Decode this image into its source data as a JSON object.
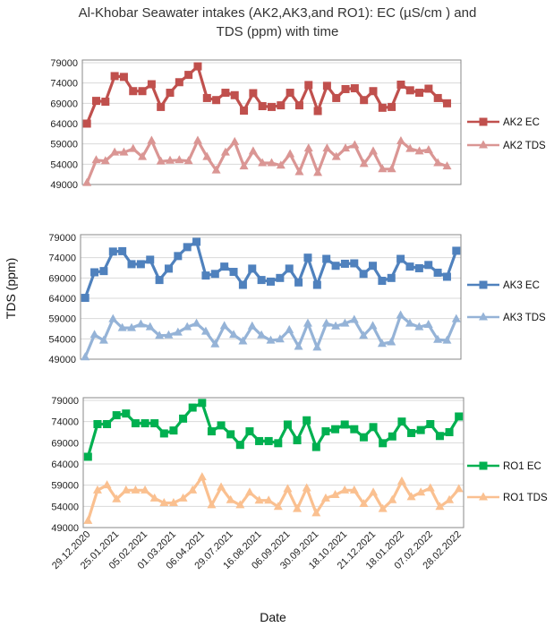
{
  "chart_data": {
    "title": "Al-Khobar Seawater intakes (AK2,AK3,and RO1): EC (µS/cm ) and TDS (ppm) with time",
    "title_lines": [
      "Al-Khobar Seawater intakes (AK2,AK3,and RO1): EC (µS/cm ) and",
      "TDS (ppm) with time"
    ],
    "xlabel": "Date",
    "ylabel": "TDS (ppm)",
    "panels": [
      {
        "type": "line",
        "ylim": [
          49000,
          79000
        ],
        "yticks": [
          "49000",
          "54000",
          "59000",
          "64000",
          "69000",
          "74000",
          "79000"
        ],
        "category_count": 41,
        "grid": true,
        "legend_position": "right",
        "series": [
          {
            "name": "AK2 EC",
            "color": "#c0504d",
            "marker": "square",
            "values": [
              64000,
              69600,
              69400,
              75700,
              75500,
              72000,
              72000,
              73700,
              68100,
              71600,
              74200,
              76000,
              78100,
              70300,
              69800,
              71600,
              71000,
              67200,
              71500,
              68300,
              68100,
              68500,
              71600,
              68500,
              73500,
              67100,
              73300,
              70300,
              72500,
              72700,
              69800,
              72000,
              67900,
              68100,
              73600,
              72200,
              71600,
              72600,
              70300,
              69000
            ]
          },
          {
            "name": "AK2 TDS",
            "color": "#da9694",
            "marker": "triangle",
            "values": [
              49400,
              55000,
              54800,
              56900,
              56900,
              57800,
              55800,
              59800,
              54700,
              54900,
              55000,
              54800,
              59800,
              55800,
              52500,
              56900,
              59500,
              53500,
              57200,
              54300,
              54300,
              53700,
              56500,
              52100,
              57900,
              51900,
              57900,
              55800,
              57900,
              58700,
              54100,
              57200,
              52800,
              52800,
              59700,
              57800,
              57200,
              57500,
              54300,
              53500
            ]
          }
        ]
      },
      {
        "type": "line",
        "ylim": [
          49000,
          79000
        ],
        "yticks": [
          "49000",
          "54000",
          "59000",
          "64000",
          "69000",
          "74000",
          "79000"
        ],
        "category_count": 41,
        "grid": true,
        "legend_position": "right",
        "series": [
          {
            "name": "AK3 EC",
            "color": "#4f81bd",
            "marker": "square",
            "values": [
              64100,
              70400,
              70700,
              75500,
              75600,
              72400,
              72400,
              73500,
              68500,
              71300,
              74400,
              76600,
              77900,
              69600,
              70000,
              71800,
              70500,
              67300,
              71300,
              68500,
              68100,
              69000,
              71300,
              67900,
              74000,
              67300,
              73700,
              72000,
              72500,
              72600,
              70000,
              72000,
              68300,
              69000,
              73700,
              71800,
              71400,
              72200,
              70300,
              69300,
              75700
            ]
          },
          {
            "name": "AK3 TDS",
            "color": "#95b3d7",
            "marker": "triangle",
            "values": [
              49500,
              55000,
              53600,
              58900,
              56700,
              56700,
              57600,
              56900,
              54800,
              54900,
              55600,
              56900,
              57800,
              55800,
              52700,
              57200,
              55000,
              53400,
              57100,
              54900,
              53600,
              53900,
              56200,
              52100,
              57800,
              51900,
              57800,
              57100,
              57800,
              58700,
              54800,
              57200,
              52800,
              53200,
              59800,
              57800,
              56900,
              57500,
              53800,
              53600,
              58900
            ]
          }
        ]
      },
      {
        "type": "line",
        "ylim": [
          49000,
          79000
        ],
        "yticks": [
          "49000",
          "54000",
          "59000",
          "64000",
          "69000",
          "74000",
          "79000"
        ],
        "category_count": 40,
        "grid": true,
        "legend_position": "right",
        "categories": [
          "29.12.2020",
          "",
          "",
          "25.01.2021",
          "",
          "",
          "05.02.2021",
          "",
          "",
          "01.03.2021",
          "",
          "",
          "06.04.2021",
          "",
          "",
          "29.07.2021",
          "",
          "",
          "16.08.2021",
          "",
          "",
          "06.09.2021",
          "",
          "",
          "30.09.2021",
          "",
          "",
          "18.10.2021",
          "",
          "",
          "21.12.2021",
          "",
          "",
          "18.01.2022",
          "",
          "",
          "07.02.2022",
          "",
          "",
          "28.02.2022"
        ],
        "series": [
          {
            "name": "RO1 EC",
            "color": "#00b050",
            "marker": "square",
            "values": [
              65700,
              73400,
              73400,
              75500,
              75900,
              73600,
              73600,
              73600,
              71200,
              71900,
              74700,
              77300,
              78400,
              71700,
              73100,
              71000,
              68500,
              71700,
              69400,
              69400,
              68900,
              73300,
              69600,
              74300,
              68000,
              71700,
              72200,
              73300,
              72200,
              70300,
              72700,
              68900,
              70500,
              74000,
              71300,
              72000,
              73400,
              70600,
              71500,
              75200
            ]
          },
          {
            "name": "RO1 TDS",
            "color": "#fac090",
            "marker": "triangle",
            "values": [
              50600,
              57800,
              59000,
              55700,
              57800,
              57800,
              57800,
              55900,
              54800,
              54800,
              55900,
              57800,
              60900,
              54300,
              58500,
              55500,
              54300,
              57300,
              55400,
              55400,
              53900,
              58100,
              53400,
              58300,
              52400,
              55900,
              56700,
              57800,
              57800,
              54600,
              57300,
              53400,
              55500,
              59900,
              56200,
              57300,
              58300,
              53900,
              55500,
              58100
            ]
          }
        ]
      }
    ]
  }
}
